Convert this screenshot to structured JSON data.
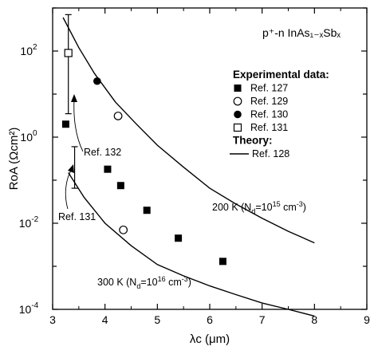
{
  "chart_data": {
    "type": "scatter",
    "title": "p⁺-n InAs₁₋ₓSbₓ",
    "xlabel": "λc (μm)",
    "ylabel": "RoA (Ωcm²)",
    "xlim": [
      3,
      9
    ],
    "ylim": [
      0.0001,
      1000
    ],
    "yscale": "log",
    "grid": false,
    "x_ticks": [
      3,
      4,
      5,
      6,
      7,
      8,
      9
    ],
    "y_ticks": [
      {
        "value": 0.0001,
        "base": "10",
        "exp": "-4"
      },
      {
        "value": 0.01,
        "base": "10",
        "exp": "-2"
      },
      {
        "value": 1,
        "base": "10",
        "exp": "0"
      },
      {
        "value": 100,
        "base": "10",
        "exp": "2"
      }
    ],
    "legend": {
      "placement": "right",
      "experimental_heading": "Experimental data:",
      "theory_heading": "Theory:"
    },
    "series": [
      {
        "name": "Ref. 127",
        "marker": "filled-square",
        "points": [
          [
            3.25,
            2.0
          ],
          [
            4.05,
            0.18
          ],
          [
            4.3,
            0.075
          ],
          [
            4.8,
            0.02
          ],
          [
            5.4,
            0.0045
          ],
          [
            6.25,
            0.0013
          ]
        ]
      },
      {
        "name": "Ref. 129",
        "marker": "open-circle",
        "points": [
          [
            4.25,
            3.1
          ],
          [
            4.35,
            0.007
          ]
        ]
      },
      {
        "name": "Ref. 130",
        "marker": "filled-circle",
        "points": [
          [
            3.85,
            20
          ]
        ]
      },
      {
        "name": "Ref. 131",
        "marker": "open-square",
        "points": [
          [
            3.3,
            90
          ]
        ],
        "error_bar": [
          3.5,
          700
        ]
      },
      {
        "name": "Ref. 132",
        "marker": "error-bar",
        "points": [
          [
            3.42,
            0.2
          ]
        ],
        "error_bar": [
          0.065,
          0.6
        ]
      }
    ],
    "theory": [
      {
        "name": "Ref. 128",
        "label": "200 K (Nd=10¹⁵ cm⁻³)",
        "points": [
          [
            3.2,
            600
          ],
          [
            3.5,
            120
          ],
          [
            3.8,
            30
          ],
          [
            4.2,
            6.5
          ],
          [
            4.6,
            2.0
          ],
          [
            5,
            0.65
          ],
          [
            5.5,
            0.2
          ],
          [
            6,
            0.065
          ],
          [
            6.5,
            0.028
          ],
          [
            7,
            0.013
          ],
          [
            7.5,
            0.0065
          ],
          [
            8,
            0.0035
          ]
        ]
      },
      {
        "name": "Ref. 128",
        "label": "300 K (Nd=10¹⁶ cm⁻³)",
        "points": [
          [
            3.3,
            0.15
          ],
          [
            3.6,
            0.04
          ],
          [
            4,
            0.01
          ],
          [
            4.5,
            0.003
          ],
          [
            5,
            0.0011
          ],
          [
            5.5,
            0.0006
          ],
          [
            6,
            0.00035
          ],
          [
            6.5,
            0.00022
          ],
          [
            7,
            0.00014
          ],
          [
            7.5,
            0.0001
          ],
          [
            8,
            7e-05
          ]
        ]
      }
    ],
    "annotations": {
      "ref132": "Ref. 132",
      "ref131": "Ref. 131",
      "curve200_prefix": "200 K (N",
      "curve200_sub": "d",
      "curve200_mid": "=10",
      "curve200_exp": "15",
      "curve200_unit": " cm",
      "curve200_unitexp": "-3",
      "curve200_close": ")",
      "curve300_prefix": "300 K (N",
      "curve300_sub": "d",
      "curve300_mid": "=10",
      "curve300_exp": "16",
      "curve300_unit": " cm",
      "curve300_unitexp": "-3",
      "curve300_close": ")"
    }
  }
}
